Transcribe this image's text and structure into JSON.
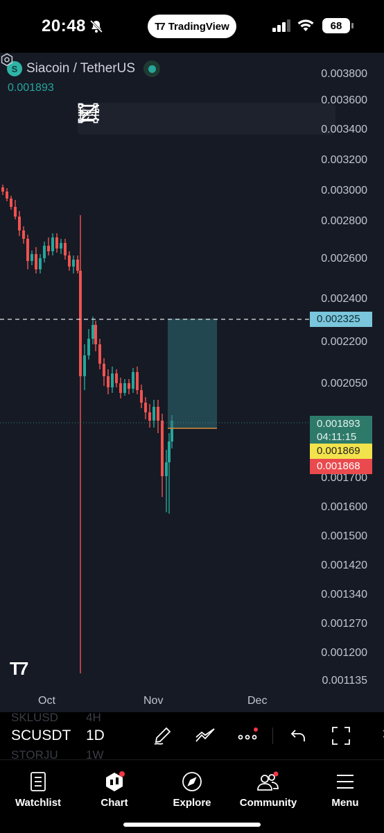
{
  "status": {
    "time": "20:48",
    "app_pill": "TradingView",
    "battery": "68"
  },
  "chart": {
    "symbol_title": "Siacoin / TetherUS",
    "symbol_icon": "S",
    "last_price": "0.001893",
    "price_axis": [
      "0.003800",
      "0.003600",
      "0.003400",
      "0.003200",
      "0.003000",
      "0.002800",
      "0.002600",
      "0.002400",
      "0.002200",
      "0.002050",
      "0.001700",
      "0.001600",
      "0.001500",
      "0.001420",
      "0.001340",
      "0.001270",
      "0.001200",
      "0.001135"
    ],
    "tags": {
      "alert_line": "0.002325",
      "price": "0.001893",
      "countdown": "04:11:15",
      "yellow": "0.001869",
      "red": "0.001868"
    },
    "time_axis": [
      "Oct",
      "Nov",
      "Dec"
    ],
    "colors": {
      "up": "#26a69a",
      "down": "#ef5350",
      "background": "#161a25"
    }
  },
  "drawing_toolbar": {
    "tools": [
      "trend-line-icon",
      "horizontal-lines-icon",
      "parallel-channel-icon",
      "regression-channel-icon",
      "rectangle-icon",
      "horizontal-ray-icon",
      "brush-icon"
    ]
  },
  "chartbar": {
    "ticker": "SCUSDT",
    "interval": "1D",
    "ghost_above_ticker": "SKLUSD",
    "ghost_above_interval": "4H",
    "ghost_below_ticker": "STORJU",
    "ghost_below_interval": "1W"
  },
  "nav": {
    "items": [
      {
        "label": "Watchlist",
        "icon": "watchlist-icon"
      },
      {
        "label": "Chart",
        "icon": "chart-icon"
      },
      {
        "label": "Explore",
        "icon": "compass-icon"
      },
      {
        "label": "Community",
        "icon": "community-icon"
      },
      {
        "label": "Menu",
        "icon": "menu-icon"
      }
    ]
  }
}
